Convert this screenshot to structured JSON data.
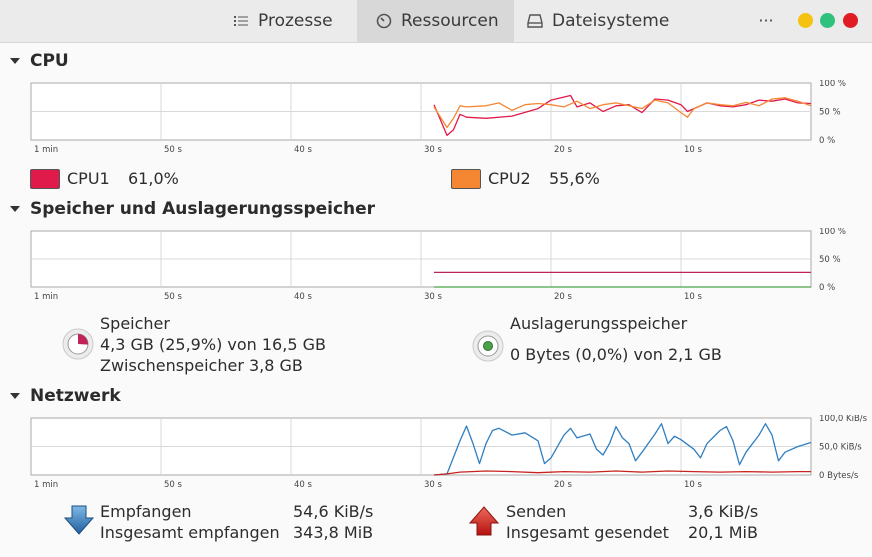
{
  "tabs": [
    {
      "label": "Prozesse",
      "icon": "list-icon"
    },
    {
      "label": "Ressourcen",
      "icon": "gauge-icon"
    },
    {
      "label": "Dateisysteme",
      "icon": "drive-icon"
    }
  ],
  "header": {
    "menu_label": "···"
  },
  "window_controls": {
    "minimize_color": "#f5c211",
    "maximize_color": "#2ec27e",
    "close_color": "#e01b24"
  },
  "time_ticks": [
    "1 min",
    "50 s",
    "40 s",
    "30 s",
    "20 s",
    "10 s"
  ],
  "cpu": {
    "title": "CPU",
    "y_ticks": [
      "100 %",
      "50 %",
      "0 %"
    ],
    "cpu1": {
      "name": "CPU1",
      "value": "61,0%",
      "color": "#e01b4c"
    },
    "cpu2": {
      "name": "CPU2",
      "value": "55,6%",
      "color": "#f58733"
    }
  },
  "memory": {
    "title": "Speicher und Auslagerungsspeicher",
    "y_ticks": [
      "100 %",
      "50 %",
      "0 %"
    ],
    "ram": {
      "label": "Speicher",
      "usage": "4,3 GB (25,9%) von 16,5 GB",
      "cache": "Zwischenspeicher 3,8 GB",
      "color": "#c0235a",
      "percent": 25.9
    },
    "swap": {
      "label": "Auslagerungsspeicher",
      "usage": "0 Bytes (0,0%) von 2,1 GB",
      "color": "#4aa34a",
      "percent": 0
    }
  },
  "network": {
    "title": "Netzwerk",
    "y_ticks": [
      "100,0 KiB/s",
      "50,0 KiB/s",
      "0 Bytes/s"
    ],
    "recv": {
      "label": "Empfangen",
      "rate": "54,6 KiB/s",
      "total_label": "Insgesamt empfangen",
      "total": "343,8 MiB",
      "color": "#2f7fc1"
    },
    "send": {
      "label": "Senden",
      "rate": "3,6 KiB/s",
      "total_label": "Insgesamt gesendet",
      "total": "20,1 MiB",
      "color": "#c8231e"
    }
  },
  "chart_data": [
    {
      "type": "line",
      "title": "CPU",
      "x_unit": "seconds ago",
      "ylim": [
        0,
        100
      ],
      "y_unit": "%",
      "series": [
        {
          "name": "CPU1",
          "color": "#e01b4c",
          "points": [
            [
              29,
              62
            ],
            [
              28.5,
              35
            ],
            [
              28,
              8
            ],
            [
              27.5,
              18
            ],
            [
              27,
              45
            ],
            [
              26.5,
              40
            ],
            [
              25,
              38
            ],
            [
              23,
              42
            ],
            [
              21,
              55
            ],
            [
              20,
              70
            ],
            [
              18.5,
              78
            ],
            [
              18,
              58
            ],
            [
              17,
              65
            ],
            [
              16,
              50
            ],
            [
              15,
              60
            ],
            [
              14,
              62
            ],
            [
              13,
              48
            ],
            [
              12,
              72
            ],
            [
              11,
              70
            ],
            [
              10,
              62
            ],
            [
              9.5,
              50
            ],
            [
              9,
              55
            ],
            [
              8,
              65
            ],
            [
              7,
              60
            ],
            [
              6,
              58
            ],
            [
              5,
              62
            ],
            [
              4,
              70
            ],
            [
              3,
              68
            ],
            [
              2,
              72
            ],
            [
              1,
              65
            ],
            [
              0,
              64
            ]
          ]
        },
        {
          "name": "CPU2",
          "color": "#f58733",
          "points": [
            [
              29,
              58
            ],
            [
              28.5,
              40
            ],
            [
              28,
              22
            ],
            [
              27.5,
              38
            ],
            [
              27,
              60
            ],
            [
              26.5,
              58
            ],
            [
              25,
              60
            ],
            [
              24,
              65
            ],
            [
              23,
              52
            ],
            [
              22,
              62
            ],
            [
              21,
              64
            ],
            [
              20,
              62
            ],
            [
              19,
              58
            ],
            [
              18,
              68
            ],
            [
              17,
              55
            ],
            [
              16,
              62
            ],
            [
              15,
              65
            ],
            [
              14,
              60
            ],
            [
              13,
              55
            ],
            [
              12,
              70
            ],
            [
              11,
              65
            ],
            [
              10,
              48
            ],
            [
              9.5,
              40
            ],
            [
              9,
              55
            ],
            [
              8,
              65
            ],
            [
              7,
              62
            ],
            [
              6,
              60
            ],
            [
              5,
              66
            ],
            [
              4,
              60
            ],
            [
              3,
              72
            ],
            [
              2,
              74
            ],
            [
              1,
              68
            ],
            [
              0,
              60
            ]
          ]
        }
      ]
    },
    {
      "type": "line",
      "title": "Speicher und Auslagerungsspeicher",
      "x_unit": "seconds ago",
      "ylim": [
        0,
        100
      ],
      "y_unit": "%",
      "series": [
        {
          "name": "Speicher",
          "color": "#c0235a",
          "points": [
            [
              29,
              26
            ],
            [
              0,
              26
            ]
          ]
        },
        {
          "name": "Auslagerungsspeicher",
          "color": "#4aa34a",
          "points": [
            [
              29,
              0
            ],
            [
              0,
              0
            ]
          ]
        }
      ]
    },
    {
      "type": "line",
      "title": "Netzwerk",
      "x_unit": "seconds ago",
      "ylim": [
        0,
        100
      ],
      "y_unit": "KiB/s",
      "series": [
        {
          "name": "Empfangen",
          "color": "#2f7fc1",
          "points": [
            [
              29,
              0
            ],
            [
              28,
              2
            ],
            [
              27,
              60
            ],
            [
              26.5,
              86
            ],
            [
              26,
              55
            ],
            [
              25.5,
              20
            ],
            [
              25,
              55
            ],
            [
              24.5,
              78
            ],
            [
              24,
              82
            ],
            [
              23,
              70
            ],
            [
              22,
              74
            ],
            [
              21,
              60
            ],
            [
              20.5,
              20
            ],
            [
              20,
              30
            ],
            [
              19,
              70
            ],
            [
              18.5,
              82
            ],
            [
              18,
              65
            ],
            [
              17,
              72
            ],
            [
              16.5,
              45
            ],
            [
              16,
              35
            ],
            [
              15.5,
              55
            ],
            [
              15,
              85
            ],
            [
              14.5,
              65
            ],
            [
              14,
              55
            ],
            [
              13.5,
              25
            ],
            [
              13,
              40
            ],
            [
              12,
              72
            ],
            [
              11.5,
              90
            ],
            [
              11,
              55
            ],
            [
              10.5,
              68
            ],
            [
              10,
              62
            ],
            [
              9,
              45
            ],
            [
              8.5,
              30
            ],
            [
              8,
              55
            ],
            [
              7,
              78
            ],
            [
              6.5,
              85
            ],
            [
              6,
              60
            ],
            [
              5.5,
              18
            ],
            [
              5,
              40
            ],
            [
              4,
              70
            ],
            [
              3.5,
              90
            ],
            [
              3,
              70
            ],
            [
              2.5,
              25
            ],
            [
              2,
              40
            ],
            [
              1,
              50
            ],
            [
              0,
              57
            ]
          ]
        },
        {
          "name": "Senden",
          "color": "#c8231e",
          "points": [
            [
              29,
              0
            ],
            [
              28,
              2
            ],
            [
              27,
              5
            ],
            [
              25,
              7
            ],
            [
              23,
              6
            ],
            [
              21,
              4
            ],
            [
              19,
              6
            ],
            [
              17,
              5
            ],
            [
              15,
              7
            ],
            [
              13,
              5
            ],
            [
              11,
              7
            ],
            [
              9,
              6
            ],
            [
              7,
              5
            ],
            [
              5,
              6
            ],
            [
              3,
              5
            ],
            [
              1,
              6
            ],
            [
              0,
              6
            ]
          ]
        }
      ]
    }
  ]
}
